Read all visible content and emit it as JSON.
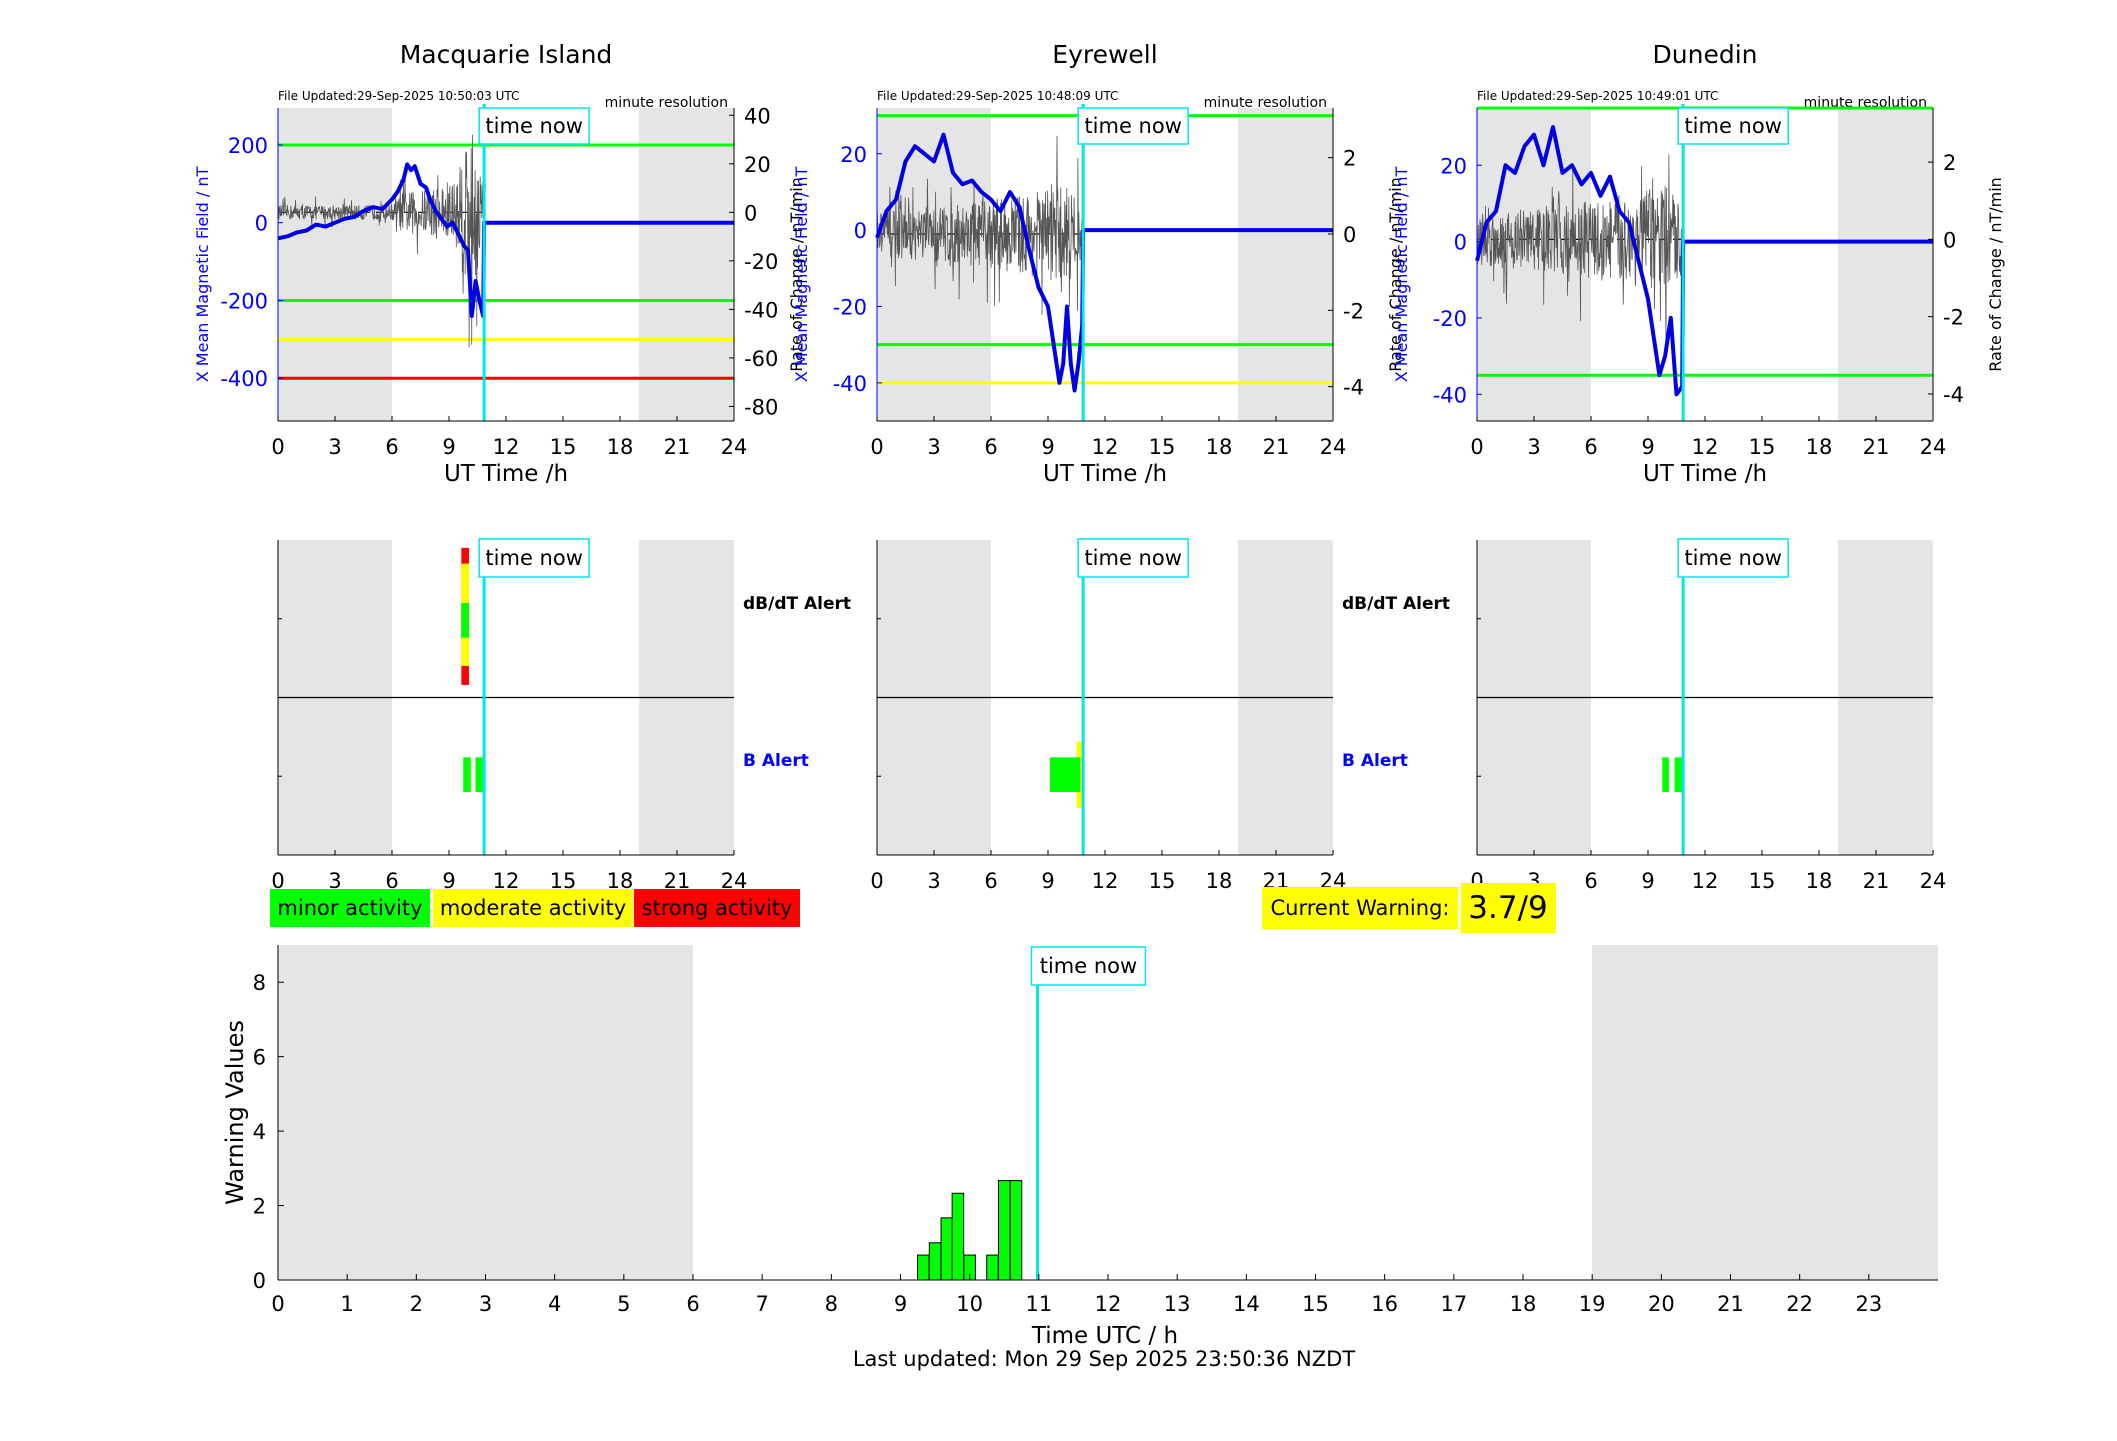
{
  "colors": {
    "night_shade": "#e5e5e5",
    "field_line": "#0000e6",
    "rate_line": "#555555",
    "time_now": "#00e5ee",
    "minor": "#00ff00",
    "moderate": "#ffff00",
    "strong": "#ff0000",
    "left_axis": "#0000ff",
    "alert_divider": "#000000"
  },
  "stations": [
    {
      "id": "macquarie",
      "title": "Macquarie Island",
      "file_updated": "File Updated:29-Sep-2025 10:50:03 UTC",
      "resolution": "minute resolution",
      "left_ylabel": "X Mean Magnetic Field / nT",
      "right_ylabel": "Rate of Change / nT/min",
      "xlabel": "UT Time /h",
      "time_now_label": "time now",
      "left_ylim": [
        -510,
        295
      ],
      "left_ticks": [
        200,
        0,
        -200,
        -400
      ],
      "left_tick_labels": [
        "200",
        "0",
        "-200",
        "-400"
      ],
      "right_ylim": [
        -86,
        43
      ],
      "right_ticks": [
        40,
        20,
        0,
        -20,
        -40,
        -60,
        -80
      ],
      "right_tick_labels": [
        "40",
        "20",
        "0",
        "-20",
        "-40",
        "-60",
        "-80"
      ],
      "threshold_lines": [
        {
          "value": 200,
          "level": "minor"
        },
        {
          "value": -200,
          "level": "minor"
        },
        {
          "value": -300,
          "level": "moderate"
        },
        {
          "value": -400,
          "level": "strong"
        }
      ],
      "field_series": [
        [
          0,
          -40
        ],
        [
          0.5,
          -35
        ],
        [
          1,
          -25
        ],
        [
          1.5,
          -20
        ],
        [
          2,
          -5
        ],
        [
          2.5,
          -10
        ],
        [
          3,
          0
        ],
        [
          3.5,
          10
        ],
        [
          4,
          15
        ],
        [
          4.5,
          30
        ],
        [
          5,
          40
        ],
        [
          5.5,
          35
        ],
        [
          6,
          60
        ],
        [
          6.3,
          80
        ],
        [
          6.6,
          110
        ],
        [
          6.8,
          150
        ],
        [
          7,
          135
        ],
        [
          7.2,
          145
        ],
        [
          7.5,
          100
        ],
        [
          7.8,
          90
        ],
        [
          8,
          60
        ],
        [
          8.3,
          30
        ],
        [
          8.6,
          10
        ],
        [
          8.9,
          -10
        ],
        [
          9.2,
          0
        ],
        [
          9.5,
          -30
        ],
        [
          9.8,
          -60
        ],
        [
          10,
          -70
        ],
        [
          10.2,
          -240
        ],
        [
          10.4,
          -150
        ],
        [
          10.6,
          -200
        ],
        [
          10.8,
          -240
        ],
        [
          10.85,
          0
        ]
      ],
      "rate_samples": 120,
      "rate_amplitude": [
        [
          0,
          3
        ],
        [
          6,
          3
        ],
        [
          6.5,
          8
        ],
        [
          8,
          10
        ],
        [
          9.5,
          15
        ],
        [
          10,
          40
        ],
        [
          10.5,
          25
        ],
        [
          10.8,
          15
        ]
      ],
      "alerts": {
        "dbdt_label": "dB/dT Alert",
        "b_label": "B Alert",
        "dbdt_blocks": [
          {
            "start": 9.65,
            "end": 10.05,
            "level": "strong",
            "lo": 0.08,
            "hi": 0.95
          },
          {
            "start": 9.65,
            "end": 10.05,
            "level": "moderate",
            "lo": 0.2,
            "hi": 0.85
          },
          {
            "start": 9.65,
            "end": 10.05,
            "level": "minor",
            "lo": 0.38,
            "hi": 0.6
          }
        ],
        "b_blocks": [
          {
            "start": 9.75,
            "end": 10.15,
            "level": "minor",
            "lo": 0.4,
            "hi": 0.62
          },
          {
            "start": 10.4,
            "end": 10.8,
            "level": "minor",
            "lo": 0.4,
            "hi": 0.62
          }
        ]
      }
    },
    {
      "id": "eyrewell",
      "title": "Eyrewell",
      "file_updated": "File Updated:29-Sep-2025 10:48:09 UTC",
      "resolution": "minute resolution",
      "left_ylabel": "X Mean Magnetic Field / nT",
      "right_ylabel": "Rate of Change / nT/min",
      "xlabel": "UT Time /h",
      "time_now_label": "time now",
      "left_ylim": [
        -50,
        32
      ],
      "left_ticks": [
        20,
        0,
        -20,
        -40
      ],
      "left_tick_labels": [
        "20",
        "0",
        "-20",
        "-40"
      ],
      "right_ylim": [
        -4.9,
        3.3
      ],
      "right_ticks": [
        2,
        0,
        -2,
        -4
      ],
      "right_tick_labels": [
        "2",
        "0",
        "-2",
        "-4"
      ],
      "threshold_lines": [
        {
          "value": 30,
          "level": "minor"
        },
        {
          "value": -30,
          "level": "minor"
        },
        {
          "value": -40,
          "level": "moderate"
        }
      ],
      "field_series": [
        [
          0,
          -2
        ],
        [
          0.5,
          5
        ],
        [
          1,
          8
        ],
        [
          1.5,
          18
        ],
        [
          2,
          22
        ],
        [
          2.5,
          20
        ],
        [
          3,
          18
        ],
        [
          3.5,
          25
        ],
        [
          4,
          15
        ],
        [
          4.5,
          12
        ],
        [
          5,
          13
        ],
        [
          5.5,
          10
        ],
        [
          6,
          8
        ],
        [
          6.5,
          5
        ],
        [
          7,
          10
        ],
        [
          7.5,
          6
        ],
        [
          8,
          -5
        ],
        [
          8.5,
          -15
        ],
        [
          9,
          -20
        ],
        [
          9.3,
          -30
        ],
        [
          9.6,
          -40
        ],
        [
          9.8,
          -35
        ],
        [
          10,
          -20
        ],
        [
          10.2,
          -35
        ],
        [
          10.4,
          -42
        ],
        [
          10.6,
          -35
        ],
        [
          10.8,
          -25
        ],
        [
          10.85,
          0
        ]
      ],
      "rate_samples": 120,
      "rate_amplitude": [
        [
          0,
          0.6
        ],
        [
          4,
          0.8
        ],
        [
          6,
          0.9
        ],
        [
          8,
          1.1
        ],
        [
          10,
          1.3
        ],
        [
          10.8,
          0.8
        ]
      ],
      "alerts": {
        "dbdt_label": "dB/dT Alert",
        "b_label": "B Alert",
        "dbdt_blocks": [],
        "b_blocks": [
          {
            "start": 10.5,
            "end": 10.85,
            "level": "moderate",
            "lo": 0.3,
            "hi": 0.72
          },
          {
            "start": 9.1,
            "end": 10.7,
            "level": "minor",
            "lo": 0.4,
            "hi": 0.62
          }
        ]
      }
    },
    {
      "id": "dunedin",
      "title": "Dunedin",
      "file_updated": "File Updated:29-Sep-2025 10:49:01 UTC",
      "resolution": "minute resolution",
      "left_ylabel": "X Mean Magnetic Field / nT",
      "right_ylabel": "Rate of Change / nT/min",
      "xlabel": "UT Time /h",
      "time_now_label": "time now",
      "left_ylim": [
        -47,
        35
      ],
      "left_ticks": [
        20,
        0,
        -20,
        -40
      ],
      "left_tick_labels": [
        "20",
        "0",
        "-20",
        "-40"
      ],
      "right_ylim": [
        -4.7,
        3.4
      ],
      "right_ticks": [
        2,
        0,
        -2,
        -4
      ],
      "right_tick_labels": [
        "2",
        "0",
        "-2",
        "-4"
      ],
      "threshold_lines": [
        {
          "value": 35,
          "level": "minor"
        },
        {
          "value": -35,
          "level": "minor"
        }
      ],
      "field_series": [
        [
          0,
          -5
        ],
        [
          0.5,
          5
        ],
        [
          1,
          8
        ],
        [
          1.5,
          20
        ],
        [
          2,
          18
        ],
        [
          2.5,
          25
        ],
        [
          3,
          28
        ],
        [
          3.5,
          20
        ],
        [
          4,
          30
        ],
        [
          4.5,
          18
        ],
        [
          5,
          20
        ],
        [
          5.5,
          15
        ],
        [
          6,
          18
        ],
        [
          6.5,
          12
        ],
        [
          7,
          17
        ],
        [
          7.5,
          8
        ],
        [
          8,
          5
        ],
        [
          8.5,
          -5
        ],
        [
          9,
          -15
        ],
        [
          9.3,
          -25
        ],
        [
          9.6,
          -35
        ],
        [
          9.9,
          -30
        ],
        [
          10.2,
          -20
        ],
        [
          10.5,
          -40
        ],
        [
          10.8,
          -38
        ],
        [
          10.85,
          0
        ]
      ],
      "rate_samples": 120,
      "rate_amplitude": [
        [
          0,
          0.7
        ],
        [
          4,
          0.9
        ],
        [
          6,
          1.0
        ],
        [
          8,
          1.2
        ],
        [
          10,
          1.4
        ],
        [
          10.8,
          0.9
        ]
      ],
      "alerts": {
        "dbdt_label": "dB/dT Alert",
        "b_label": "B Alert",
        "dbdt_blocks": [],
        "b_blocks": [
          {
            "start": 9.75,
            "end": 10.1,
            "level": "minor",
            "lo": 0.4,
            "hi": 0.62
          },
          {
            "start": 10.4,
            "end": 10.85,
            "level": "minor",
            "lo": 0.4,
            "hi": 0.62
          }
        ]
      }
    }
  ],
  "time_now_h": 10.85,
  "night_bands_h": [
    [
      0,
      6
    ],
    [
      19,
      24
    ]
  ],
  "hour_ticks_top": [
    0,
    3,
    6,
    9,
    12,
    15,
    18,
    21,
    24
  ],
  "legend": {
    "minor": "minor activity",
    "moderate": "moderate activity",
    "strong": "strong activity"
  },
  "current_warning": {
    "label": "Current Warning:",
    "value": "3.7/9"
  },
  "chart_data": {
    "type": "bar",
    "title": "",
    "xlabel": "Time UTC / h",
    "ylabel": "Warning Values",
    "xlim": [
      0,
      24
    ],
    "ylim": [
      0,
      9
    ],
    "x_ticks": [
      0,
      1,
      2,
      3,
      4,
      5,
      6,
      7,
      8,
      9,
      10,
      11,
      12,
      13,
      14,
      15,
      16,
      17,
      18,
      19,
      20,
      21,
      22,
      23
    ],
    "y_ticks": [
      0,
      2,
      4,
      6,
      8
    ],
    "time_now_label": "time now",
    "bars": [
      {
        "x": 9.33,
        "value": 0.67
      },
      {
        "x": 9.5,
        "value": 1.0
      },
      {
        "x": 9.67,
        "value": 1.67
      },
      {
        "x": 9.83,
        "value": 2.33
      },
      {
        "x": 10.0,
        "value": 0.67
      },
      {
        "x": 10.33,
        "value": 0.67
      },
      {
        "x": 10.5,
        "value": 2.67
      },
      {
        "x": 10.67,
        "value": 2.67
      }
    ],
    "bar_width_h": 0.1667
  },
  "footer": {
    "last_updated": "Last updated: Mon 29 Sep 2025 23:50:36 NZDT"
  }
}
